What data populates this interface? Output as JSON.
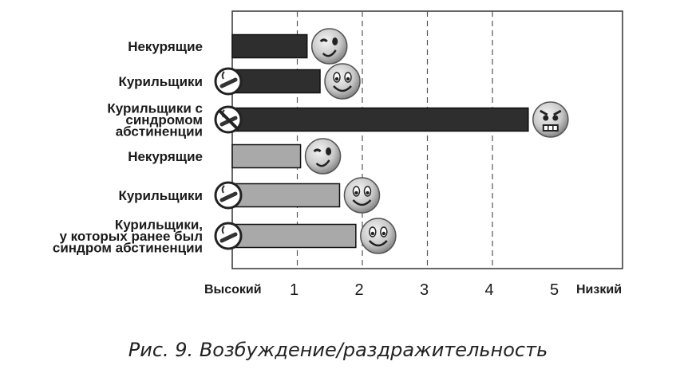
{
  "caption": "Рис. 9. Возбуждение/раздражительность",
  "chart_data": {
    "type": "bar",
    "orientation": "horizontal",
    "categories": [
      [
        "Некурящие"
      ],
      [
        "Курильщики"
      ],
      [
        "Курильщики с",
        "синдромом",
        "абстиненции"
      ],
      [
        "Некурящие"
      ],
      [
        "Курильщики"
      ],
      [
        "Курильщики,",
        "у которых ранее был",
        "синдром абстиненции"
      ]
    ],
    "values": [
      1.15,
      1.35,
      4.55,
      1.05,
      1.65,
      1.9
    ],
    "bar_colors": [
      "#2e2e2e",
      "#2e2e2e",
      "#2e2e2e",
      "#a9a9a9",
      "#a9a9a9",
      "#a9a9a9"
    ],
    "category_icons": [
      "",
      "cigarette-icon",
      "no-smoking-icon",
      "",
      "cigarette-icon",
      "cigarette-icon"
    ],
    "value_icons": [
      "wink-face-icon",
      "smiley-face-icon",
      "angry-face-icon",
      "wink-face-icon",
      "smiley-face-icon",
      "smiley-face-icon"
    ],
    "x_ticks": [
      1,
      2,
      3,
      4,
      5
    ],
    "x_tick_labels": [
      "1",
      "2",
      "3",
      "4",
      "5"
    ],
    "xlim": [
      0,
      5
    ],
    "x_low_end_label": "Высокий",
    "x_high_end_label": "Низкий",
    "grid": "vertical-dashed"
  }
}
